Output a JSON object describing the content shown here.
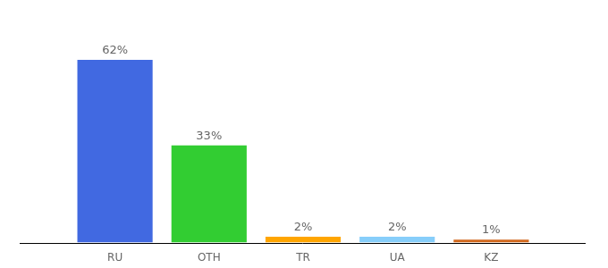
{
  "chart_data": {
    "type": "bar",
    "categories": [
      "RU",
      "OTH",
      "TR",
      "UA",
      "KZ"
    ],
    "values": [
      62,
      33,
      2,
      2,
      1
    ],
    "value_labels": [
      "62%",
      "33%",
      "2%",
      "2%",
      "1%"
    ],
    "colors": [
      "#4169e1",
      "#32cd32",
      "#ffa500",
      "#87cefa",
      "#d2691e"
    ],
    "ylim": [
      0,
      62
    ],
    "grid": false,
    "data_labels": true,
    "tick_labels": "x"
  }
}
